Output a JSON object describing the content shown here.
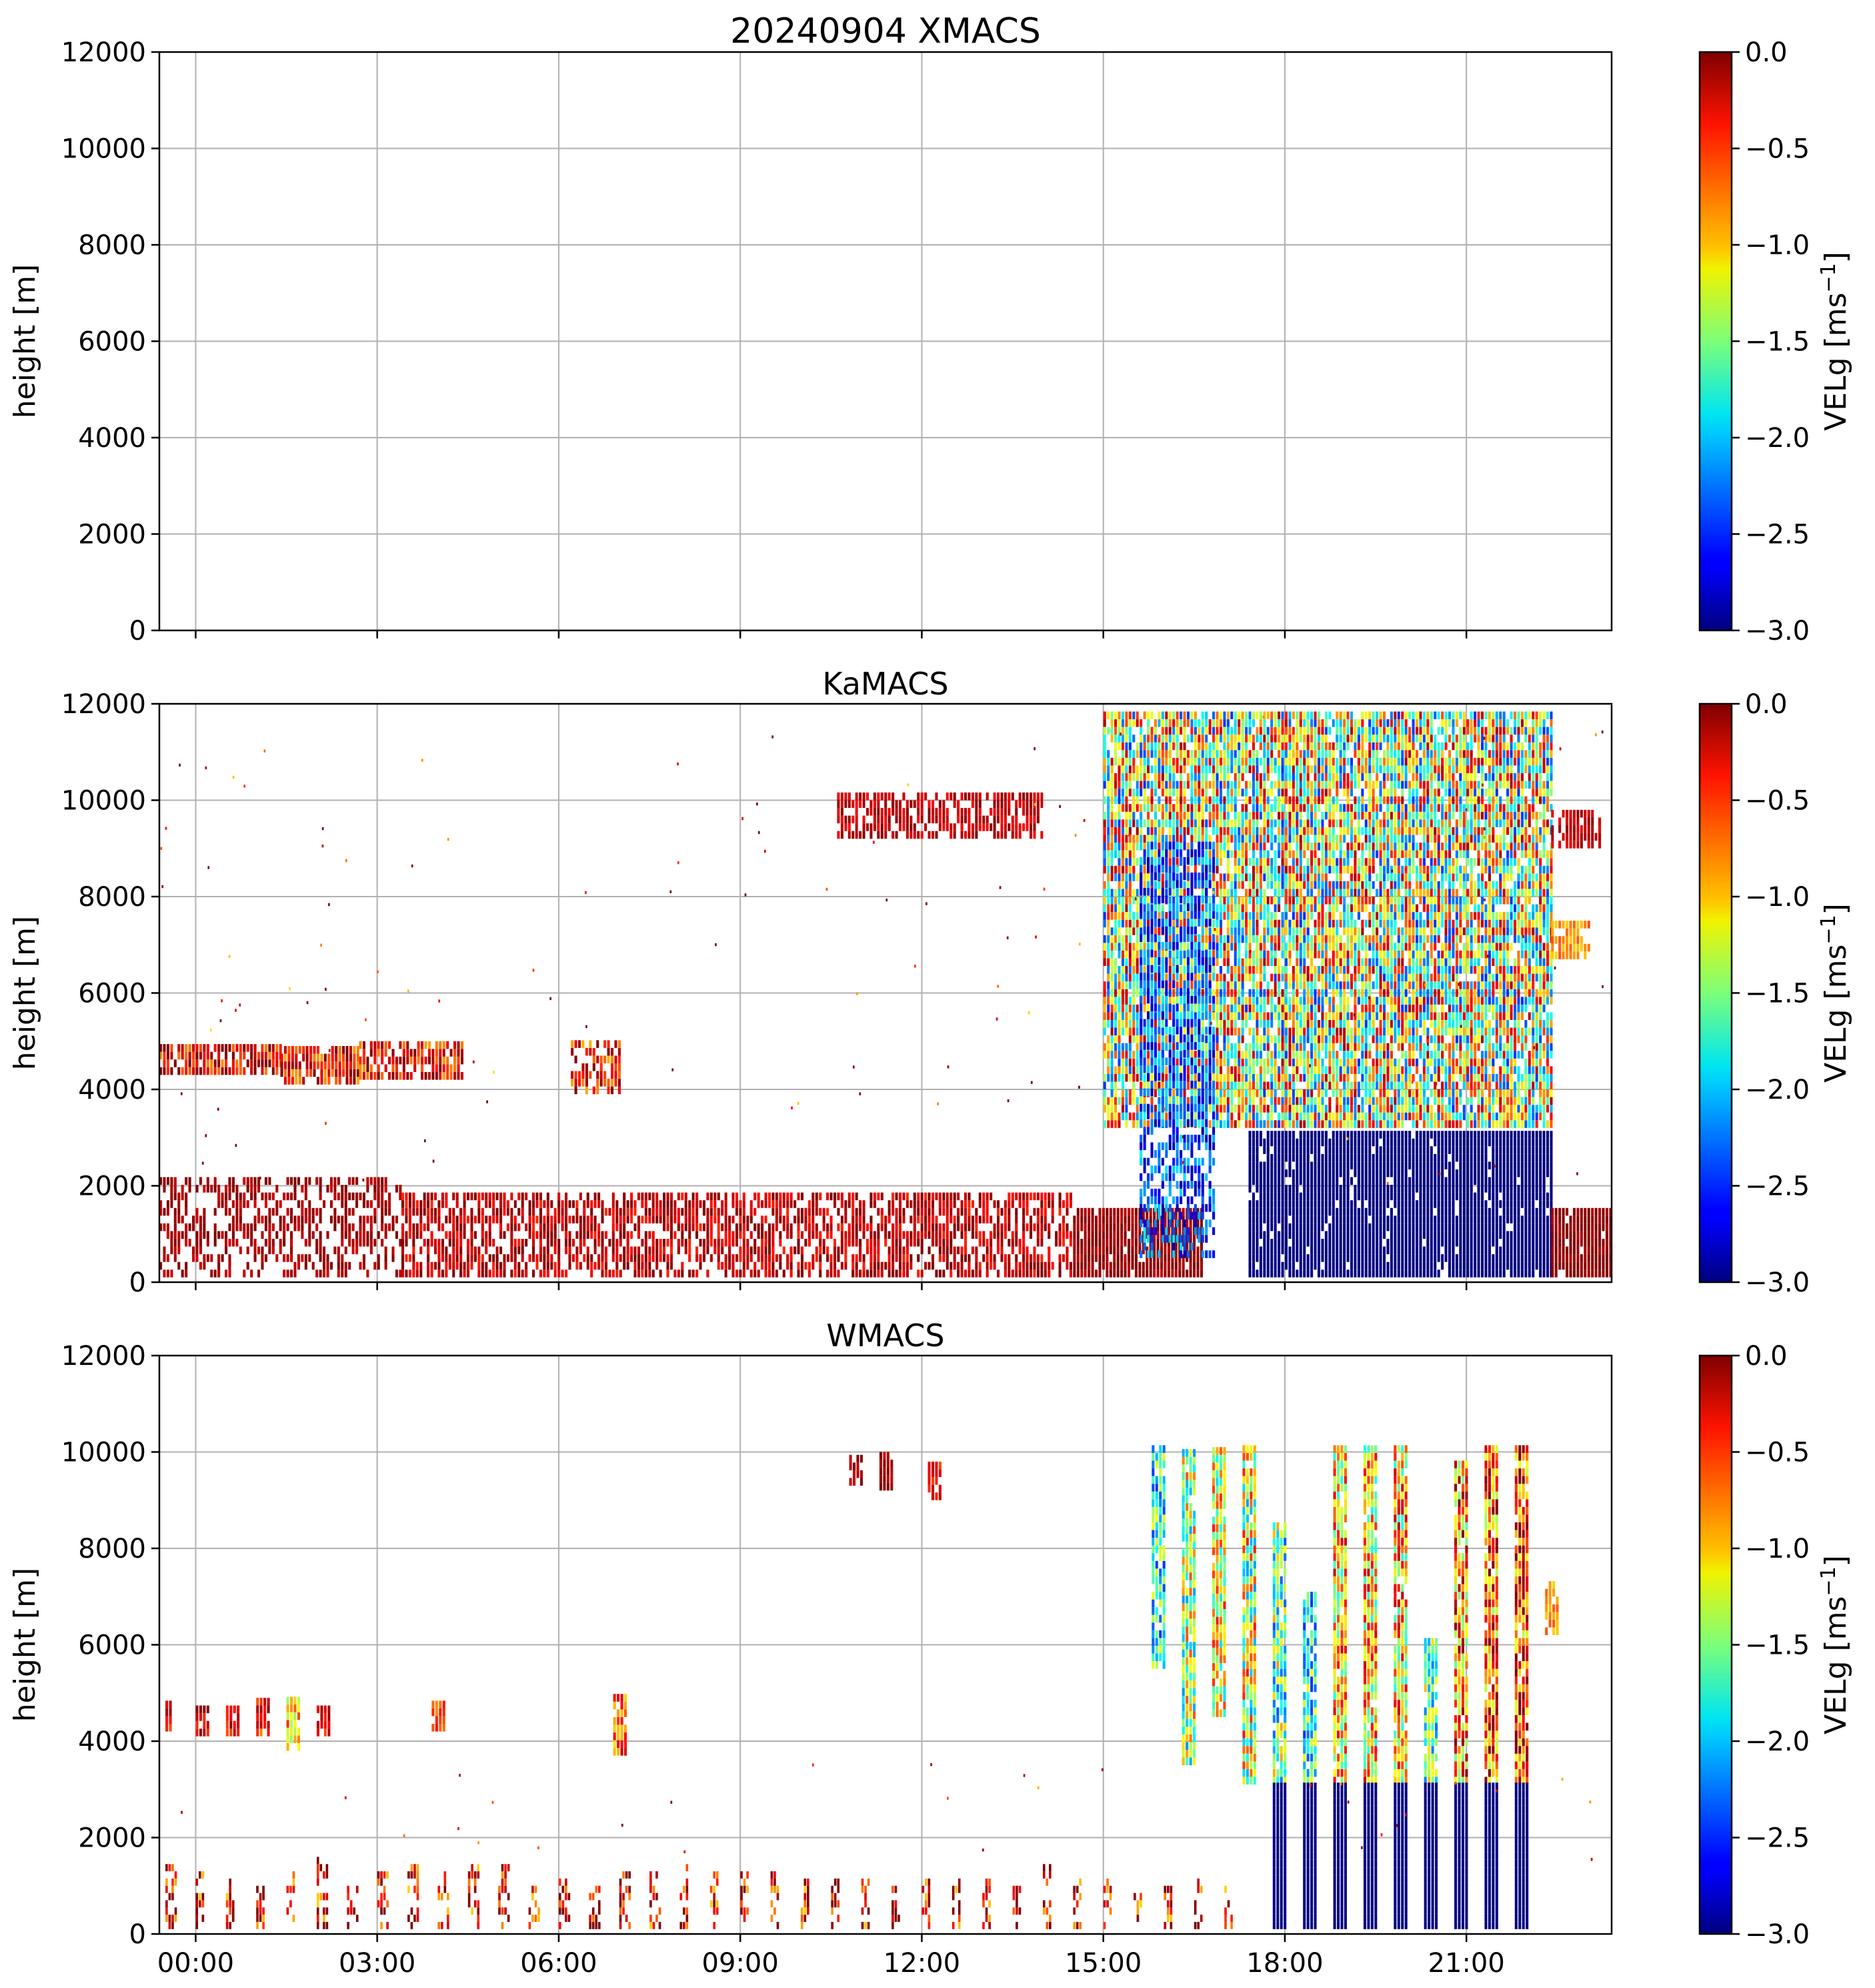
{
  "figure": {
    "title": "20240904 XMACS",
    "ylabel": "height [m]",
    "xtick_labels": [
      "00:00",
      "03:00",
      "06:00",
      "09:00",
      "12:00",
      "15:00",
      "18:00",
      "21:00"
    ]
  },
  "colorbar": {
    "label_main": "VELg [ms",
    "label_exp": "−1",
    "label_close": "]",
    "ticks": [
      "0.0",
      "−0.5",
      "−1.0",
      "−1.5",
      "−2.0",
      "−2.5",
      "−3.0"
    ],
    "vmin": -3.0,
    "vmax": 0.0,
    "colormap": "jet"
  },
  "chart_data": [
    {
      "type": "heatmap",
      "title": "20240904 XMACS",
      "xlabel": "",
      "ylabel": "height [m]",
      "x_range_hours": [
        -0.6,
        23.4
      ],
      "ylim": [
        0,
        12000
      ],
      "yticks": [
        0,
        2000,
        4000,
        6000,
        8000,
        10000,
        12000
      ],
      "grid": true,
      "features": []
    },
    {
      "type": "heatmap",
      "title": "KaMACS",
      "xlabel": "",
      "ylabel": "height [m]",
      "x_range_hours": [
        -0.6,
        23.4
      ],
      "ylim": [
        0,
        12000
      ],
      "yticks": [
        0,
        2000,
        4000,
        6000,
        8000,
        10000,
        12000
      ],
      "grid": true,
      "features": [
        {
          "kind": "band",
          "t0": -0.6,
          "t1": 1.4,
          "h0": 4300,
          "h1": 4800,
          "v": -0.3,
          "vspread": 1.0,
          "dens": 0.85
        },
        {
          "kind": "band",
          "t0": 1.4,
          "t1": 2.7,
          "h0": 4100,
          "h1": 4850,
          "v": -0.4,
          "vspread": 1.0,
          "dens": 0.85
        },
        {
          "kind": "band",
          "t0": 2.7,
          "t1": 4.4,
          "h0": 4200,
          "h1": 4900,
          "v": -0.4,
          "vspread": 0.9,
          "dens": 0.8
        },
        {
          "kind": "band",
          "t0": 6.2,
          "t1": 7.0,
          "h0": 3900,
          "h1": 4900,
          "v": -0.4,
          "vspread": 1.0,
          "dens": 0.6
        },
        {
          "kind": "band",
          "t0": -0.6,
          "t1": 3.4,
          "h0": 100,
          "h1": 2100,
          "v": -0.1,
          "vspread": 0.3,
          "dens": 0.55
        },
        {
          "kind": "band",
          "t0": 3.4,
          "t1": 14.5,
          "h0": 100,
          "h1": 1800,
          "v": -0.2,
          "vspread": 0.6,
          "dens": 0.7
        },
        {
          "kind": "band",
          "t0": 14.5,
          "t1": 16.6,
          "h0": 100,
          "h1": 1500,
          "v": -0.05,
          "vspread": 0.3,
          "dens": 0.95
        },
        {
          "kind": "band",
          "t0": 10.6,
          "t1": 14.0,
          "h0": 9200,
          "h1": 10100,
          "v": -0.2,
          "vspread": 0.4,
          "dens": 0.7
        },
        {
          "kind": "band",
          "t0": 15.0,
          "t1": 22.4,
          "h0": 3200,
          "h1": 11800,
          "v": -1.3,
          "vspread": 2.4,
          "dens": 0.9
        },
        {
          "kind": "band",
          "t0": 15.6,
          "t1": 16.8,
          "h0": 500,
          "h1": 9000,
          "v": -2.4,
          "vspread": 1.0,
          "dens": 0.6
        },
        {
          "kind": "band",
          "t0": 17.4,
          "t1": 22.4,
          "h0": 100,
          "h1": 3100,
          "v": -3.0,
          "vspread": 0.0,
          "dens": 0.95
        },
        {
          "kind": "band",
          "t0": 22.4,
          "t1": 23.4,
          "h0": 100,
          "h1": 1500,
          "v": -0.05,
          "vspread": 0.2,
          "dens": 0.95
        },
        {
          "kind": "band",
          "t0": 22.4,
          "t1": 23.2,
          "h0": 9000,
          "h1": 9800,
          "v": -0.2,
          "vspread": 0.3,
          "dens": 0.8
        },
        {
          "kind": "band",
          "t0": 22.4,
          "t1": 23.0,
          "h0": 6700,
          "h1": 7400,
          "v": -0.8,
          "vspread": 0.4,
          "dens": 0.8
        },
        {
          "kind": "scatter",
          "t0": -0.6,
          "t1": 23.4,
          "h0": 2000,
          "h1": 12000,
          "v": -0.3,
          "vspread": 1.5,
          "count": 140
        }
      ]
    },
    {
      "type": "heatmap",
      "title": "WMACS",
      "xlabel": "",
      "ylabel": "height [m]",
      "x_range_hours": [
        -0.6,
        23.4
      ],
      "ylim": [
        0,
        12000
      ],
      "yticks": [
        0,
        2000,
        4000,
        6000,
        8000,
        10000,
        12000
      ],
      "grid": true,
      "features": [
        {
          "kind": "band",
          "t0": -0.5,
          "t1": -0.4,
          "h0": 4200,
          "h1": 4700,
          "v": -0.4,
          "vspread": 0.6,
          "dens": 0.9
        },
        {
          "kind": "band",
          "t0": 0.0,
          "t1": 0.2,
          "h0": 4100,
          "h1": 4700,
          "v": -0.3,
          "vspread": 0.6,
          "dens": 0.9
        },
        {
          "kind": "band",
          "t0": 0.5,
          "t1": 0.7,
          "h0": 4100,
          "h1": 4700,
          "v": -0.3,
          "vspread": 0.6,
          "dens": 0.9
        },
        {
          "kind": "band",
          "t0": 1.0,
          "t1": 1.2,
          "h0": 4100,
          "h1": 4750,
          "v": -0.4,
          "vspread": 0.8,
          "dens": 0.9
        },
        {
          "kind": "band",
          "t0": 1.5,
          "t1": 1.7,
          "h0": 3800,
          "h1": 4800,
          "v": -1.0,
          "vspread": 1.0,
          "dens": 0.9
        },
        {
          "kind": "band",
          "t0": 2.0,
          "t1": 2.2,
          "h0": 4100,
          "h1": 4700,
          "v": -0.3,
          "vspread": 0.6,
          "dens": 0.9
        },
        {
          "kind": "band",
          "t0": 3.9,
          "t1": 4.1,
          "h0": 4200,
          "h1": 4800,
          "v": -0.5,
          "vspread": 0.6,
          "dens": 0.9
        },
        {
          "kind": "band",
          "t0": 6.9,
          "t1": 7.1,
          "h0": 3700,
          "h1": 4900,
          "v": -0.6,
          "vspread": 0.9,
          "dens": 0.9
        },
        {
          "kind": "band",
          "t0": 10.8,
          "t1": 11.0,
          "h0": 9300,
          "h1": 9900,
          "v": -0.1,
          "vspread": 0.3,
          "dens": 0.8
        },
        {
          "kind": "band",
          "t0": 11.3,
          "t1": 11.5,
          "h0": 9200,
          "h1": 9900,
          "v": -0.1,
          "vspread": 0.3,
          "dens": 0.8
        },
        {
          "kind": "band",
          "t0": 12.1,
          "t1": 12.3,
          "h0": 9000,
          "h1": 9800,
          "v": -0.4,
          "vspread": 0.4,
          "dens": 0.8
        },
        {
          "kind": "band",
          "t0": 15.8,
          "t1": 16.0,
          "h0": 5500,
          "h1": 10000,
          "v": -1.8,
          "vspread": 1.4,
          "dens": 0.95
        },
        {
          "kind": "band",
          "t0": 16.3,
          "t1": 16.5,
          "h0": 3500,
          "h1": 10000,
          "v": -1.4,
          "vspread": 1.6,
          "dens": 0.95
        },
        {
          "kind": "band",
          "t0": 16.8,
          "t1": 17.0,
          "h0": 4500,
          "h1": 10000,
          "v": -1.2,
          "vspread": 1.6,
          "dens": 0.95
        },
        {
          "kind": "band",
          "t0": 17.3,
          "t1": 17.5,
          "h0": 3100,
          "h1": 10000,
          "v": -1.3,
          "vspread": 1.8,
          "dens": 0.95
        },
        {
          "kind": "band",
          "t0": 17.8,
          "t1": 18.0,
          "h0": 3100,
          "h1": 8400,
          "v": -1.6,
          "vspread": 1.6,
          "dens": 0.9
        },
        {
          "kind": "band",
          "t0": 18.3,
          "t1": 18.5,
          "h0": 3100,
          "h1": 7000,
          "v": -1.8,
          "vspread": 1.4,
          "dens": 0.9
        },
        {
          "kind": "band",
          "t0": 18.8,
          "t1": 19.0,
          "h0": 3100,
          "h1": 10000,
          "v": -1.0,
          "vspread": 1.6,
          "dens": 0.95
        },
        {
          "kind": "band",
          "t0": 19.3,
          "t1": 19.5,
          "h0": 3100,
          "h1": 10000,
          "v": -1.0,
          "vspread": 1.6,
          "dens": 0.95
        },
        {
          "kind": "band",
          "t0": 19.8,
          "t1": 20.0,
          "h0": 3100,
          "h1": 10000,
          "v": -1.0,
          "vspread": 1.6,
          "dens": 0.95
        },
        {
          "kind": "band",
          "t0": 20.3,
          "t1": 20.5,
          "h0": 3100,
          "h1": 6000,
          "v": -1.6,
          "vspread": 1.4,
          "dens": 0.9
        },
        {
          "kind": "band",
          "t0": 20.8,
          "t1": 21.0,
          "h0": 3100,
          "h1": 9700,
          "v": -0.8,
          "vspread": 1.6,
          "dens": 0.95
        },
        {
          "kind": "band",
          "t0": 21.3,
          "t1": 21.5,
          "h0": 3100,
          "h1": 10000,
          "v": -0.6,
          "vspread": 1.6,
          "dens": 0.95
        },
        {
          "kind": "band",
          "t0": 21.8,
          "t1": 22.0,
          "h0": 3100,
          "h1": 10000,
          "v": -0.5,
          "vspread": 1.6,
          "dens": 0.95
        },
        {
          "kind": "band",
          "t0": 22.3,
          "t1": 22.5,
          "h0": 6200,
          "h1": 7300,
          "v": -0.8,
          "vspread": 0.4,
          "dens": 0.8
        },
        {
          "kind": "band",
          "t0": 17.8,
          "t1": 18.0,
          "h0": 100,
          "h1": 3100,
          "v": -3.0,
          "vspread": 0.0,
          "dens": 1.0
        },
        {
          "kind": "band",
          "t0": 18.3,
          "t1": 18.5,
          "h0": 100,
          "h1": 3100,
          "v": -3.0,
          "vspread": 0.0,
          "dens": 1.0
        },
        {
          "kind": "band",
          "t0": 18.8,
          "t1": 19.0,
          "h0": 100,
          "h1": 3100,
          "v": -3.0,
          "vspread": 0.0,
          "dens": 1.0
        },
        {
          "kind": "band",
          "t0": 19.3,
          "t1": 19.5,
          "h0": 100,
          "h1": 3100,
          "v": -3.0,
          "vspread": 0.0,
          "dens": 1.0
        },
        {
          "kind": "band",
          "t0": 19.8,
          "t1": 20.0,
          "h0": 100,
          "h1": 3100,
          "v": -3.0,
          "vspread": 0.0,
          "dens": 1.0
        },
        {
          "kind": "band",
          "t0": 20.3,
          "t1": 20.5,
          "h0": 100,
          "h1": 3100,
          "v": -3.0,
          "vspread": 0.0,
          "dens": 1.0
        },
        {
          "kind": "band",
          "t0": 20.8,
          "t1": 21.0,
          "h0": 100,
          "h1": 3100,
          "v": -3.0,
          "vspread": 0.0,
          "dens": 1.0
        },
        {
          "kind": "band",
          "t0": 21.3,
          "t1": 21.5,
          "h0": 100,
          "h1": 3100,
          "v": -3.0,
          "vspread": 0.0,
          "dens": 1.0
        },
        {
          "kind": "band",
          "t0": 21.8,
          "t1": 22.0,
          "h0": 100,
          "h1": 3100,
          "v": -3.0,
          "vspread": 0.0,
          "dens": 1.0
        },
        {
          "kind": "columns",
          "t0": -0.5,
          "t1": 17.5,
          "step": 0.5,
          "width": 0.15,
          "h0": 100,
          "h1": 1500,
          "v": -0.3,
          "vspread": 1.4,
          "dens": 0.5
        },
        {
          "kind": "scatter",
          "t0": -0.6,
          "t1": 23.4,
          "h0": 1500,
          "h1": 3500,
          "v": -0.4,
          "vspread": 1.0,
          "count": 30
        }
      ]
    }
  ]
}
